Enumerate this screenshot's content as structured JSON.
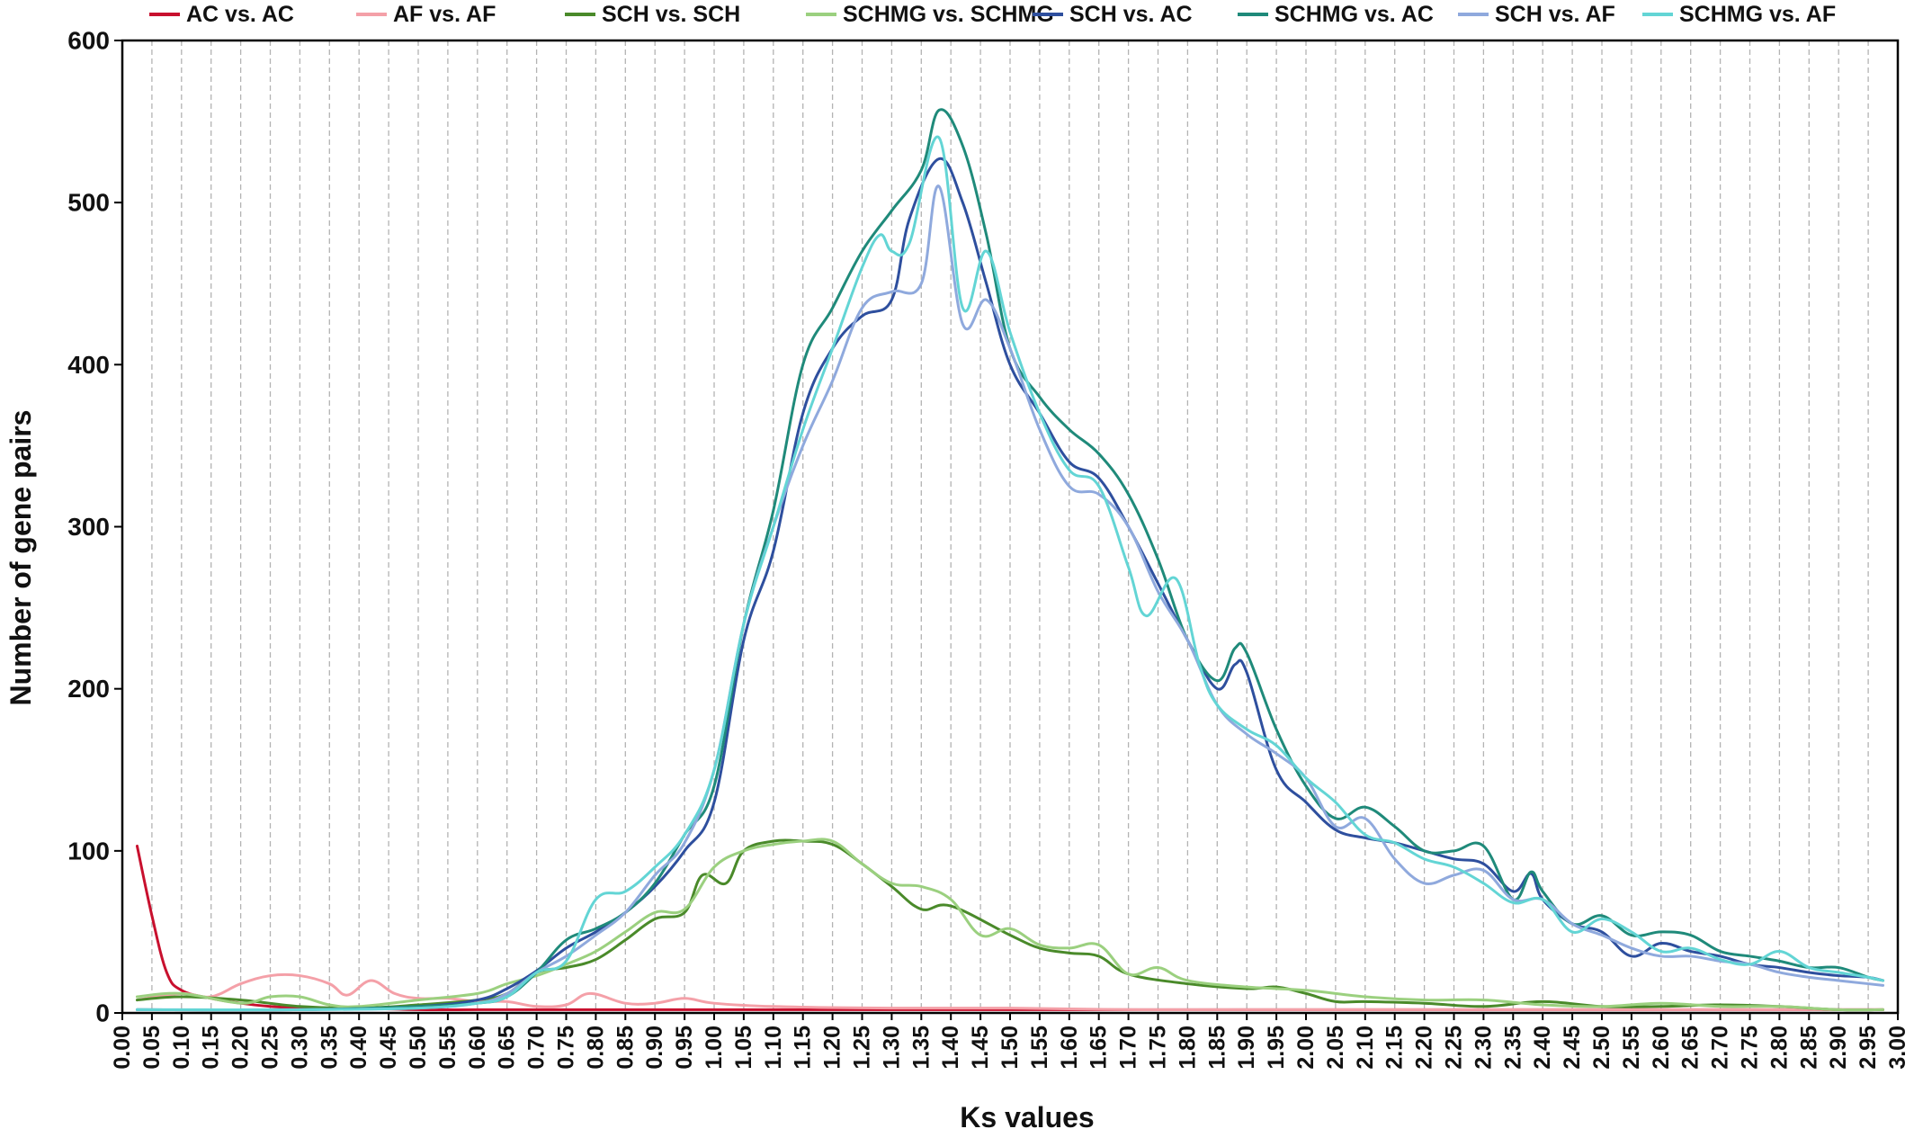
{
  "chart_data": {
    "type": "line",
    "title": "",
    "xlabel": "Ks values",
    "ylabel": "Number of gene pairs",
    "xlim": [
      0,
      3.0
    ],
    "ylim": [
      0,
      600
    ],
    "x_ticks": [
      "0.00",
      "0.05",
      "0.10",
      "0.15",
      "0.20",
      "0.25",
      "0.30",
      "0.35",
      "0.40",
      "0.45",
      "0.50",
      "0.55",
      "0.60",
      "0.65",
      "0.70",
      "0.75",
      "0.80",
      "0.85",
      "0.90",
      "0.95",
      "1.00",
      "1.05",
      "1.10",
      "1.15",
      "1.20",
      "1.25",
      "1.30",
      "1.35",
      "1.40",
      "1.45",
      "1.50",
      "1.55",
      "1.60",
      "1.65",
      "1.70",
      "1.75",
      "1.80",
      "1.85",
      "1.90",
      "1.95",
      "2.00",
      "2.05",
      "2.10",
      "2.15",
      "2.20",
      "2.25",
      "2.30",
      "2.35",
      "2.40",
      "2.45",
      "2.50",
      "2.55",
      "2.60",
      "2.65",
      "2.70",
      "2.75",
      "2.80",
      "2.85",
      "2.90",
      "2.95",
      "3.00"
    ],
    "y_ticks": [
      "0",
      "100",
      "200",
      "300",
      "400",
      "500",
      "600"
    ],
    "grid": "vertical dashed",
    "legend": "top",
    "series": [
      {
        "name": "AC vs. AC",
        "color": "#c8102e",
        "x": [
          0.025,
          0.05,
          0.075,
          0.1,
          0.15,
          0.2,
          0.25,
          0.3,
          0.35,
          0.4,
          0.5,
          0.6,
          0.7,
          0.8,
          0.9,
          1.0,
          1.2,
          1.4,
          1.6,
          1.8,
          2.0,
          2.4,
          2.8,
          2.975
        ],
        "y": [
          103,
          60,
          25,
          14,
          9,
          6,
          4,
          3,
          3,
          3,
          2,
          2,
          2,
          2,
          2,
          2,
          2,
          2,
          2,
          2,
          2,
          2,
          2,
          2
        ]
      },
      {
        "name": "AF vs. AF",
        "color": "#f4a0a8",
        "x": [
          0.025,
          0.1,
          0.15,
          0.2,
          0.25,
          0.3,
          0.35,
          0.38,
          0.42,
          0.46,
          0.5,
          0.55,
          0.6,
          0.65,
          0.7,
          0.75,
          0.79,
          0.85,
          0.9,
          0.95,
          1.0,
          1.1,
          1.3,
          1.5,
          1.7,
          1.9,
          2.2,
          2.5,
          2.8,
          2.975
        ],
        "y": [
          8,
          12,
          10,
          18,
          23,
          23,
          18,
          11,
          20,
          12,
          9,
          9,
          7,
          7,
          4,
          5,
          12,
          6,
          6,
          9,
          6,
          4,
          3,
          3,
          2,
          2,
          2,
          2,
          2,
          2
        ]
      },
      {
        "name": "SCH vs. SCH",
        "color": "#4a8a2a",
        "x": [
          0.025,
          0.1,
          0.2,
          0.3,
          0.4,
          0.5,
          0.6,
          0.65,
          0.7,
          0.75,
          0.8,
          0.85,
          0.9,
          0.95,
          0.98,
          1.02,
          1.05,
          1.1,
          1.15,
          1.2,
          1.25,
          1.3,
          1.35,
          1.4,
          1.5,
          1.55,
          1.6,
          1.65,
          1.7,
          1.8,
          1.9,
          1.95,
          2.0,
          2.05,
          2.1,
          2.2,
          2.3,
          2.4,
          2.5,
          2.6,
          2.7,
          2.8,
          2.9,
          2.975
        ],
        "y": [
          8,
          10,
          8,
          4,
          3,
          5,
          8,
          12,
          25,
          28,
          33,
          45,
          58,
          62,
          85,
          80,
          100,
          106,
          106,
          104,
          92,
          78,
          64,
          66,
          48,
          40,
          37,
          35,
          24,
          18,
          15,
          16,
          12,
          7,
          7,
          6,
          4,
          7,
          4,
          4,
          5,
          4,
          2,
          2
        ]
      },
      {
        "name": "SCHMG vs. SCHMG",
        "color": "#9bd07f",
        "x": [
          0.025,
          0.1,
          0.2,
          0.25,
          0.3,
          0.35,
          0.4,
          0.5,
          0.6,
          0.65,
          0.7,
          0.75,
          0.8,
          0.85,
          0.9,
          0.95,
          1.0,
          1.05,
          1.1,
          1.15,
          1.2,
          1.25,
          1.3,
          1.35,
          1.4,
          1.45,
          1.5,
          1.55,
          1.6,
          1.65,
          1.7,
          1.75,
          1.8,
          1.9,
          2.0,
          2.1,
          2.2,
          2.3,
          2.4,
          2.5,
          2.6,
          2.7,
          2.8,
          2.9,
          2.975
        ],
        "y": [
          10,
          12,
          6,
          10,
          10,
          5,
          4,
          8,
          12,
          18,
          23,
          30,
          38,
          50,
          62,
          64,
          90,
          100,
          104,
          106,
          106,
          92,
          80,
          78,
          70,
          48,
          52,
          42,
          40,
          42,
          24,
          28,
          20,
          16,
          14,
          10,
          8,
          8,
          5,
          4,
          6,
          4,
          4,
          2,
          2
        ]
      },
      {
        "name": "SCH vs. AC",
        "color": "#2e4f9e",
        "x": [
          0.025,
          0.3,
          0.5,
          0.6,
          0.65,
          0.7,
          0.75,
          0.8,
          0.85,
          0.9,
          0.95,
          1.0,
          1.05,
          1.1,
          1.15,
          1.2,
          1.25,
          1.3,
          1.33,
          1.38,
          1.42,
          1.46,
          1.5,
          1.55,
          1.6,
          1.65,
          1.7,
          1.75,
          1.8,
          1.85,
          1.88,
          1.9,
          1.95,
          2.0,
          2.05,
          2.1,
          2.15,
          2.2,
          2.25,
          2.3,
          2.35,
          2.38,
          2.4,
          2.45,
          2.5,
          2.55,
          2.6,
          2.65,
          2.7,
          2.75,
          2.8,
          2.85,
          2.9,
          2.95,
          2.975
        ],
        "y": [
          2,
          2,
          4,
          8,
          15,
          26,
          40,
          50,
          62,
          78,
          100,
          130,
          230,
          285,
          370,
          410,
          430,
          440,
          490,
          527,
          500,
          450,
          400,
          370,
          340,
          330,
          300,
          265,
          230,
          200,
          215,
          210,
          150,
          130,
          113,
          108,
          105,
          100,
          95,
          92,
          75,
          86,
          70,
          55,
          50,
          35,
          43,
          38,
          35,
          30,
          28,
          25,
          23,
          22,
          20
        ]
      },
      {
        "name": "SCHMG vs. AC",
        "color": "#1f8a7a",
        "x": [
          0.025,
          0.3,
          0.5,
          0.6,
          0.65,
          0.7,
          0.75,
          0.8,
          0.85,
          0.9,
          0.95,
          1.0,
          1.05,
          1.1,
          1.15,
          1.2,
          1.25,
          1.3,
          1.35,
          1.38,
          1.42,
          1.46,
          1.5,
          1.55,
          1.6,
          1.65,
          1.7,
          1.75,
          1.8,
          1.85,
          1.88,
          1.9,
          1.95,
          2.0,
          2.05,
          2.1,
          2.15,
          2.2,
          2.25,
          2.3,
          2.35,
          2.38,
          2.4,
          2.45,
          2.5,
          2.55,
          2.6,
          2.65,
          2.7,
          2.75,
          2.8,
          2.85,
          2.9,
          2.95,
          2.975
        ],
        "y": [
          2,
          2,
          4,
          6,
          10,
          25,
          45,
          52,
          62,
          80,
          110,
          140,
          240,
          310,
          400,
          435,
          470,
          495,
          520,
          557,
          535,
          480,
          410,
          380,
          360,
          345,
          320,
          280,
          230,
          205,
          225,
          222,
          175,
          140,
          120,
          127,
          115,
          100,
          100,
          103,
          70,
          87,
          75,
          55,
          60,
          48,
          50,
          48,
          38,
          35,
          32,
          28,
          28,
          22,
          20
        ]
      },
      {
        "name": "SCH vs. AF",
        "color": "#8fa9dd",
        "x": [
          0.025,
          0.3,
          0.5,
          0.6,
          0.65,
          0.7,
          0.75,
          0.8,
          0.85,
          0.9,
          0.95,
          1.0,
          1.05,
          1.1,
          1.15,
          1.2,
          1.25,
          1.3,
          1.35,
          1.38,
          1.42,
          1.46,
          1.5,
          1.55,
          1.6,
          1.65,
          1.7,
          1.75,
          1.8,
          1.85,
          1.9,
          1.95,
          2.0,
          2.05,
          2.1,
          2.15,
          2.2,
          2.25,
          2.3,
          2.35,
          2.4,
          2.45,
          2.5,
          2.55,
          2.6,
          2.65,
          2.7,
          2.75,
          2.8,
          2.85,
          2.9,
          2.95,
          2.975
        ],
        "y": [
          2,
          2,
          3,
          6,
          12,
          25,
          35,
          48,
          62,
          85,
          105,
          150,
          240,
          300,
          350,
          390,
          435,
          445,
          450,
          510,
          425,
          440,
          410,
          360,
          325,
          320,
          300,
          260,
          230,
          190,
          172,
          160,
          145,
          115,
          120,
          95,
          80,
          85,
          88,
          70,
          70,
          55,
          48,
          40,
          35,
          35,
          32,
          30,
          25,
          22,
          20,
          18,
          17
        ]
      },
      {
        "name": "SCHMG vs. AF",
        "color": "#63d5d5",
        "x": [
          0.025,
          0.3,
          0.5,
          0.6,
          0.65,
          0.7,
          0.75,
          0.8,
          0.85,
          0.9,
          0.95,
          1.0,
          1.05,
          1.1,
          1.15,
          1.2,
          1.25,
          1.28,
          1.3,
          1.33,
          1.38,
          1.42,
          1.46,
          1.5,
          1.55,
          1.6,
          1.65,
          1.7,
          1.73,
          1.78,
          1.82,
          1.85,
          1.9,
          1.95,
          2.0,
          2.05,
          2.1,
          2.15,
          2.2,
          2.25,
          2.3,
          2.35,
          2.4,
          2.45,
          2.5,
          2.55,
          2.6,
          2.65,
          2.7,
          2.75,
          2.8,
          2.85,
          2.9,
          2.95,
          2.975
        ],
        "y": [
          2,
          2,
          3,
          6,
          10,
          25,
          32,
          70,
          75,
          90,
          110,
          150,
          240,
          300,
          360,
          410,
          460,
          480,
          470,
          475,
          540,
          435,
          470,
          420,
          370,
          335,
          325,
          275,
          245,
          268,
          215,
          190,
          175,
          165,
          145,
          130,
          110,
          105,
          95,
          90,
          80,
          68,
          70,
          50,
          58,
          50,
          38,
          40,
          33,
          30,
          38,
          28,
          25,
          22,
          20
        ]
      }
    ]
  }
}
